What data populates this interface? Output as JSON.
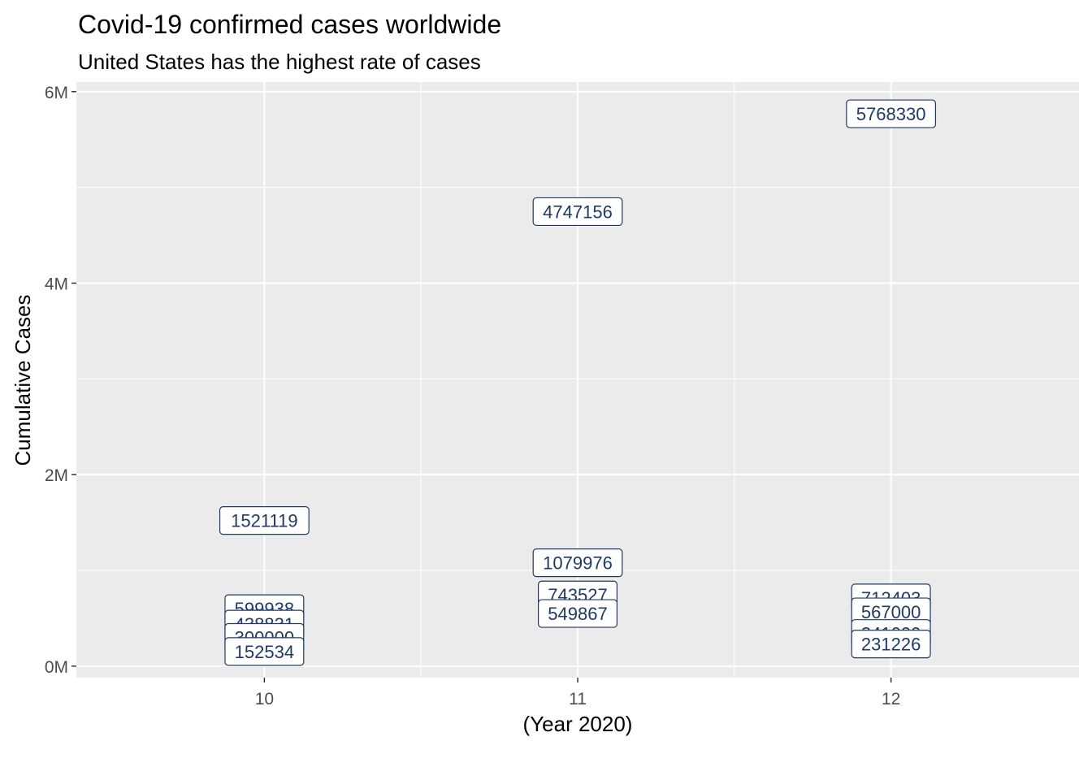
{
  "chart_data": {
    "type": "scatter",
    "title": "Covid-19 confirmed cases worldwide",
    "subtitle": "United States has the highest rate of cases",
    "xlabel": "(Year 2020)",
    "ylabel": "Cumulative Cases",
    "xlim": [
      9.4,
      12.6
    ],
    "ylim": [
      -120000,
      6100000
    ],
    "x_ticks": [
      10,
      11,
      12
    ],
    "x_tick_labels": [
      "10",
      "11",
      "12"
    ],
    "y_ticks": [
      0,
      2000000,
      4000000,
      6000000
    ],
    "y_tick_labels": [
      "0M",
      "2M",
      "4M",
      "6M"
    ],
    "grid": true,
    "panel_color": "#EBEBEB",
    "label_color": "#1F3A66",
    "points": [
      {
        "x": 10,
        "y": 1521119,
        "label": "1521119"
      },
      {
        "x": 10,
        "y": 599938,
        "label": "599938"
      },
      {
        "x": 10,
        "y": 438831,
        "label": "438831"
      },
      {
        "x": 10,
        "y": 300000,
        "label": "300000"
      },
      {
        "x": 10,
        "y": 152534,
        "label": "152534"
      },
      {
        "x": 11,
        "y": 4747156,
        "label": "4747156"
      },
      {
        "x": 11,
        "y": 1079976,
        "label": "1079976"
      },
      {
        "x": 11,
        "y": 743527,
        "label": "743527"
      },
      {
        "x": 11,
        "y": 549867,
        "label": "549867"
      },
      {
        "x": 12,
        "y": 5768330,
        "label": "5768330"
      },
      {
        "x": 12,
        "y": 712403,
        "label": "712403"
      },
      {
        "x": 12,
        "y": 567000,
        "label": "567000"
      },
      {
        "x": 12,
        "y": 341000,
        "label": "341000"
      },
      {
        "x": 12,
        "y": 231226,
        "label": "231226"
      }
    ]
  }
}
